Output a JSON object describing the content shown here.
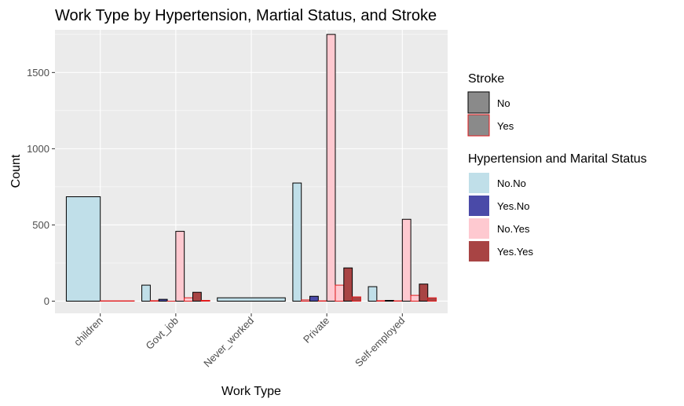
{
  "chart_data": {
    "type": "bar",
    "title": "Work Type by Hypertension, Martial Status, and Stroke",
    "xlabel": "Work Type",
    "ylabel": "Count",
    "ylim": [
      -80,
      1780
    ],
    "yticks": [
      0,
      500,
      1000,
      1500
    ],
    "grid": true,
    "legend_position": "right",
    "categories": [
      "children",
      "Govt_job",
      "Never_worked",
      "Private",
      "Self-employed"
    ],
    "fill_groups": [
      {
        "name": "No.No",
        "color": "#c0dfe9"
      },
      {
        "name": "Yes.No",
        "color": "#4a4aa8"
      },
      {
        "name": "No.Yes",
        "color": "#fec9d0"
      },
      {
        "name": "Yes.Yes",
        "color": "#a84444"
      }
    ],
    "stroke_groups": [
      {
        "name": "No",
        "color": "#000000"
      },
      {
        "name": "Yes",
        "color": "#e31a1c"
      }
    ],
    "bars": [
      {
        "category": "children",
        "fill": "No.No",
        "stroke": "No",
        "value": 685
      },
      {
        "category": "children",
        "fill": "No.No",
        "stroke": "Yes",
        "value": 2
      },
      {
        "category": "Govt_job",
        "fill": "No.No",
        "stroke": "No",
        "value": 105
      },
      {
        "category": "Govt_job",
        "fill": "No.No",
        "stroke": "Yes",
        "value": 3
      },
      {
        "category": "Govt_job",
        "fill": "Yes.No",
        "stroke": "No",
        "value": 12
      },
      {
        "category": "Govt_job",
        "fill": "Yes.No",
        "stroke": "Yes",
        "value": 0
      },
      {
        "category": "Govt_job",
        "fill": "No.Yes",
        "stroke": "No",
        "value": 458
      },
      {
        "category": "Govt_job",
        "fill": "No.Yes",
        "stroke": "Yes",
        "value": 22
      },
      {
        "category": "Govt_job",
        "fill": "Yes.Yes",
        "stroke": "No",
        "value": 58
      },
      {
        "category": "Govt_job",
        "fill": "Yes.Yes",
        "stroke": "Yes",
        "value": 5
      },
      {
        "category": "Never_worked",
        "fill": "No.No",
        "stroke": "No",
        "value": 22
      },
      {
        "category": "Private",
        "fill": "No.No",
        "stroke": "No",
        "value": 775
      },
      {
        "category": "Private",
        "fill": "No.No",
        "stroke": "Yes",
        "value": 8
      },
      {
        "category": "Private",
        "fill": "Yes.No",
        "stroke": "No",
        "value": 32
      },
      {
        "category": "Private",
        "fill": "Yes.No",
        "stroke": "Yes",
        "value": 2
      },
      {
        "category": "Private",
        "fill": "No.Yes",
        "stroke": "No",
        "value": 1750
      },
      {
        "category": "Private",
        "fill": "No.Yes",
        "stroke": "Yes",
        "value": 105
      },
      {
        "category": "Private",
        "fill": "Yes.Yes",
        "stroke": "No",
        "value": 218
      },
      {
        "category": "Private",
        "fill": "Yes.Yes",
        "stroke": "Yes",
        "value": 28
      },
      {
        "category": "Self-employed",
        "fill": "No.No",
        "stroke": "No",
        "value": 95
      },
      {
        "category": "Self-employed",
        "fill": "No.No",
        "stroke": "Yes",
        "value": 3
      },
      {
        "category": "Self-employed",
        "fill": "Yes.No",
        "stroke": "No",
        "value": 5
      },
      {
        "category": "Self-employed",
        "fill": "Yes.No",
        "stroke": "Yes",
        "value": 2
      },
      {
        "category": "Self-employed",
        "fill": "No.Yes",
        "stroke": "No",
        "value": 537
      },
      {
        "category": "Self-employed",
        "fill": "No.Yes",
        "stroke": "Yes",
        "value": 38
      },
      {
        "category": "Self-employed",
        "fill": "Yes.Yes",
        "stroke": "No",
        "value": 112
      },
      {
        "category": "Self-employed",
        "fill": "Yes.Yes",
        "stroke": "Yes",
        "value": 22
      }
    ],
    "legends": [
      {
        "title": "Stroke",
        "type": "stroke",
        "entries": [
          "No",
          "Yes"
        ]
      },
      {
        "title": "Hypertension and Marital Status",
        "type": "fill",
        "entries": [
          "No.No",
          "Yes.No",
          "No.Yes",
          "Yes.Yes"
        ]
      }
    ],
    "colors": {
      "panel_background": "#ebebeb",
      "grid_line": "#ffffff",
      "legend_key_stroke_fill": "#8a8a8a"
    }
  }
}
